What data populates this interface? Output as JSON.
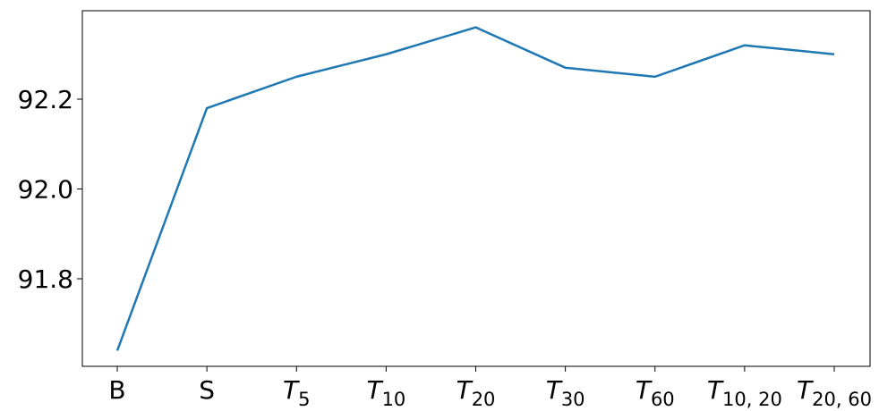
{
  "chart_data": {
    "type": "line",
    "categories": [
      "B",
      "S",
      "T",
      "T",
      "T",
      "T",
      "T",
      "T",
      "T"
    ],
    "category_subscripts": [
      null,
      null,
      "5",
      "10",
      "20",
      "30",
      "60",
      "10, 20",
      "20, 60"
    ],
    "series": [
      {
        "color": "#1f77b4",
        "values": [
          91.64,
          92.18,
          92.25,
          92.3,
          92.36,
          92.27,
          92.25,
          92.32,
          92.3
        ]
      }
    ],
    "ylim": [
      91.605,
      92.397
    ],
    "yticks": [
      91.8,
      {
        "value": 92.0,
        "label": "92.0"
      },
      92.2
    ]
  }
}
